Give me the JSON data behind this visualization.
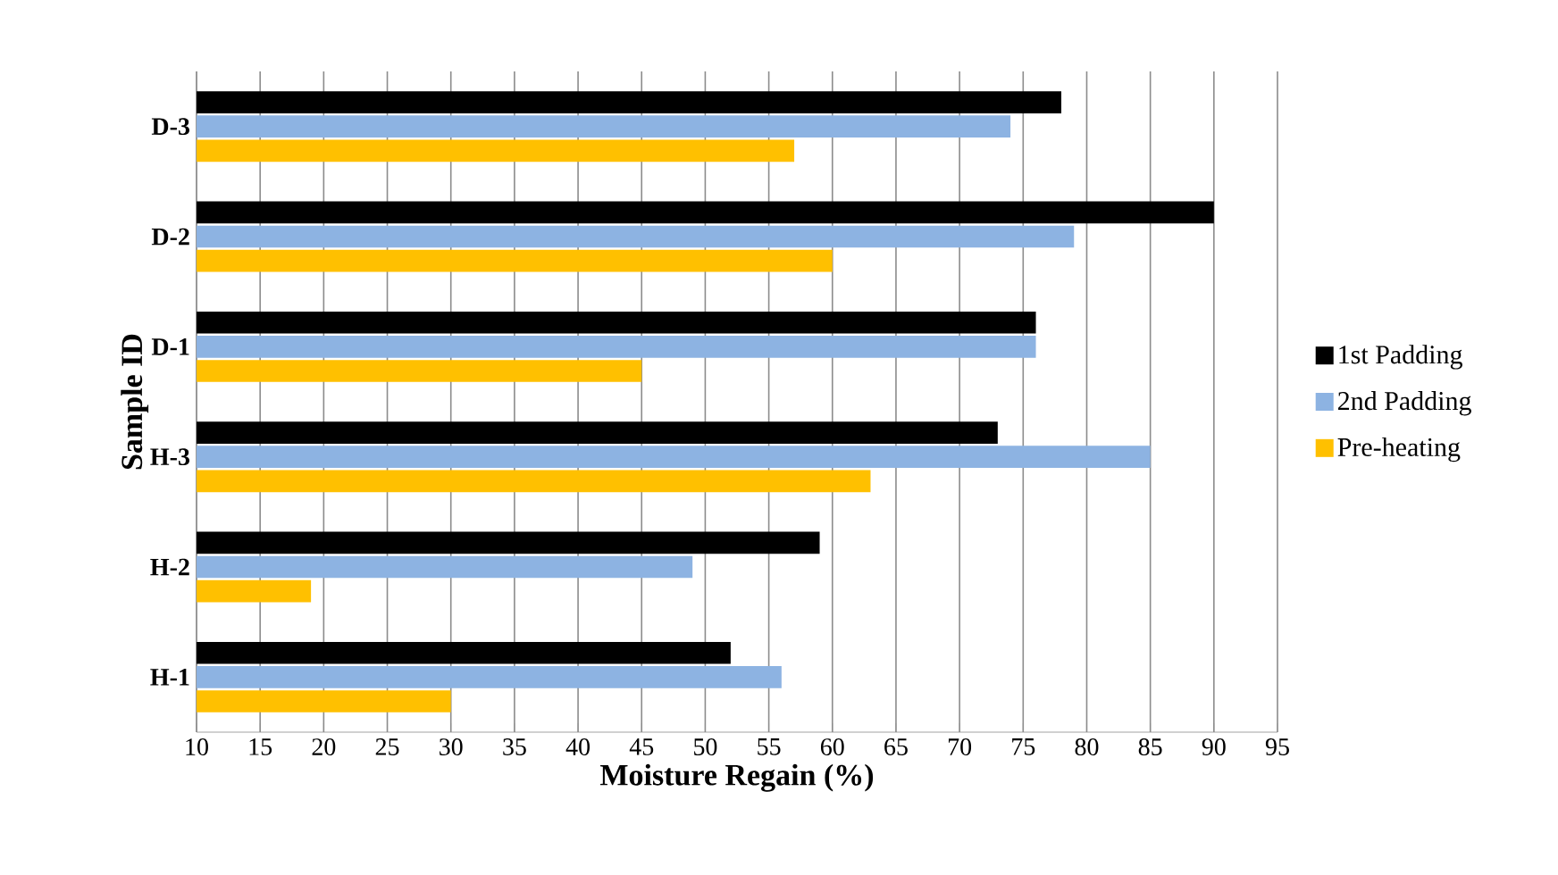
{
  "chart_data": {
    "type": "bar",
    "orientation": "horizontal",
    "categories": [
      "D-3",
      "D-2",
      "D-1",
      "H-3",
      "H-2",
      "H-1"
    ],
    "series": [
      {
        "name": "1st Padding",
        "color": "#000000",
        "values": [
          78,
          90,
          76,
          73,
          59,
          52
        ]
      },
      {
        "name": "2nd Padding",
        "color": "#8db3e2",
        "values": [
          74,
          79,
          76,
          85,
          49,
          56
        ]
      },
      {
        "name": "Pre-heating",
        "color": "#ffc000",
        "values": [
          57,
          60,
          45,
          63,
          19,
          30
        ]
      }
    ],
    "xlim": [
      10,
      95
    ],
    "xticks": [
      10,
      15,
      20,
      25,
      30,
      35,
      40,
      45,
      50,
      55,
      60,
      65,
      70,
      75,
      80,
      85,
      90,
      95
    ],
    "xlabel": "Moisture Regain (%)",
    "ylabel": "Sample ID",
    "grid": "x",
    "legend": "right"
  }
}
